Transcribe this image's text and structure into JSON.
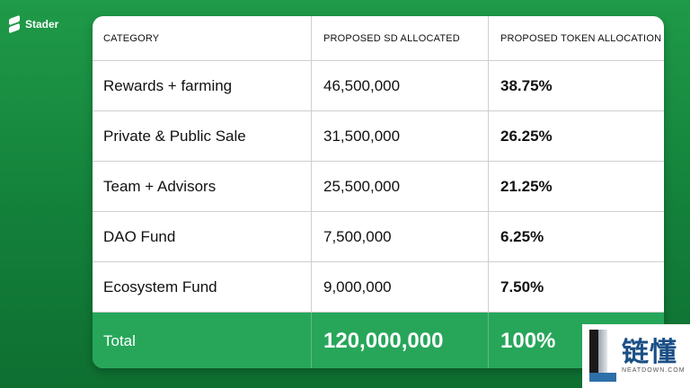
{
  "brand": {
    "name": "Stader"
  },
  "table": {
    "headers": [
      "CATEGORY",
      "PROPOSED SD ALLOCATED",
      "PROPOSED TOKEN ALLOCATION"
    ],
    "rows": [
      {
        "category": "Rewards + farming",
        "sd": "46,500,000",
        "pct": "38.75%"
      },
      {
        "category": "Private & Public Sale",
        "sd": "31,500,000",
        "pct": "26.25%"
      },
      {
        "category": "Team + Advisors",
        "sd": "25,500,000",
        "pct": "21.25%"
      },
      {
        "category": "DAO Fund",
        "sd": "7,500,000",
        "pct": "6.25%"
      },
      {
        "category": "Ecosystem Fund",
        "sd": "9,000,000",
        "pct": "7.50%"
      }
    ],
    "total": {
      "label": "Total",
      "sd": "120,000,000",
      "pct": "100%"
    }
  },
  "watermark": {
    "text": "链懂",
    "subtext": "NEATDOWN.COM"
  },
  "colors": {
    "background": "#1a8f42",
    "total_row": "#27a65a",
    "watermark_text": "#1b4f86"
  }
}
